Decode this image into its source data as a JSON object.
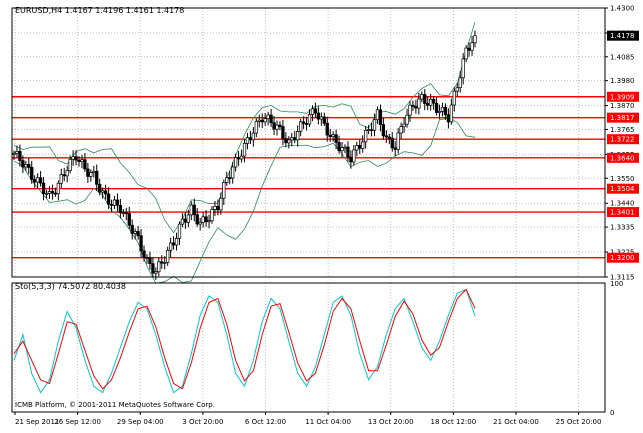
{
  "header": {
    "symbol_info": "EURUSD,H4  1.4167 1.4196 1.4161 1.4178",
    "indicator_info": "Sto(5,3,3) 74.5072 80.4038"
  },
  "footer": {
    "copyright": "ICMB Platform, © 2001-2011 MetaQuotes Software Corp."
  },
  "colors": {
    "background": "#ffffff",
    "candle": "#000000",
    "bollinger": "#2e8b57",
    "level_line": "#ff0000",
    "level_tag": "#ff0000",
    "current_price_tag": "#000000",
    "stoch_main": "#00c8d2",
    "stoch_signal": "#ff0000",
    "grid": "#c0c0c0"
  },
  "chart_data": [
    {
      "type": "candlestick",
      "series": [
        {
          "name": "",
          "kind": "candles"
        },
        {
          "name": "",
          "kind": "bollinger-bands"
        }
      ],
      "price_axis_ticks": [
        "1.4300",
        "1.4190",
        "1.4085",
        "1.3980",
        "1.3870",
        "1.3765",
        "1.3655",
        "1.3550",
        "1.3440",
        "1.3335",
        "1.3225",
        "1.3115"
      ],
      "ylim": [
        1.3115,
        1.43
      ],
      "time_axis_ticks": [
        "21 Sep 2011",
        "26 Sep 12:00",
        "29 Sep 04:00",
        "3 Oct 20:00",
        "6 Oct 12:00",
        "11 Oct 04:00",
        "13 Oct 20:00",
        "18 Oct 12:00",
        "21 Oct 04:00",
        "25 Oct 20:00"
      ],
      "horizontal_levels": [
        "1.3909",
        "1.3817",
        "1.3722",
        "1.3640",
        "1.3504",
        "1.3401",
        "1.3200"
      ],
      "current_price": "1.4178",
      "close_path": [
        1.366,
        1.362,
        1.356,
        1.352,
        1.347,
        1.352,
        1.36,
        1.365,
        1.359,
        1.356,
        1.348,
        1.344,
        1.342,
        1.335,
        1.328,
        1.318,
        1.314,
        1.32,
        1.327,
        1.336,
        1.341,
        1.335,
        1.338,
        1.343,
        1.355,
        1.362,
        1.369,
        1.376,
        1.382,
        1.38,
        1.376,
        1.37,
        1.376,
        1.381,
        1.385,
        1.378,
        1.372,
        1.368,
        1.364,
        1.37,
        1.376,
        1.383,
        1.372,
        1.369,
        1.381,
        1.387,
        1.39,
        1.388,
        1.385,
        1.382,
        1.396,
        1.411,
        1.4178
      ],
      "grid": true
    },
    {
      "type": "line",
      "indicator": "Sto(5,3,3)",
      "ylim": [
        0,
        100
      ],
      "y_ticks": [
        "100",
        "0"
      ],
      "series": [
        {
          "name": "",
          "role": "main",
          "values": [
            40,
            60,
            30,
            15,
            25,
            55,
            78,
            65,
            40,
            20,
            15,
            30,
            50,
            70,
            85,
            80,
            60,
            35,
            15,
            20,
            45,
            75,
            90,
            85,
            60,
            30,
            20,
            40,
            70,
            88,
            80,
            55,
            30,
            20,
            35,
            60,
            85,
            90,
            75,
            45,
            25,
            35,
            60,
            80,
            88,
            70,
            50,
            40,
            55,
            75,
            92,
            95,
            74.5
          ]
        },
        {
          "name": "",
          "role": "signal",
          "values": [
            45,
            55,
            40,
            25,
            22,
            45,
            70,
            68,
            48,
            28,
            18,
            25,
            42,
            62,
            80,
            82,
            66,
            42,
            22,
            18,
            38,
            65,
            85,
            88,
            68,
            40,
            24,
            32,
            60,
            82,
            84,
            62,
            38,
            24,
            30,
            52,
            78,
            88,
            80,
            55,
            32,
            32,
            52,
            74,
            86,
            76,
            56,
            44,
            50,
            70,
            88,
            95,
            80.4
          ]
        }
      ],
      "grid": true
    }
  ]
}
